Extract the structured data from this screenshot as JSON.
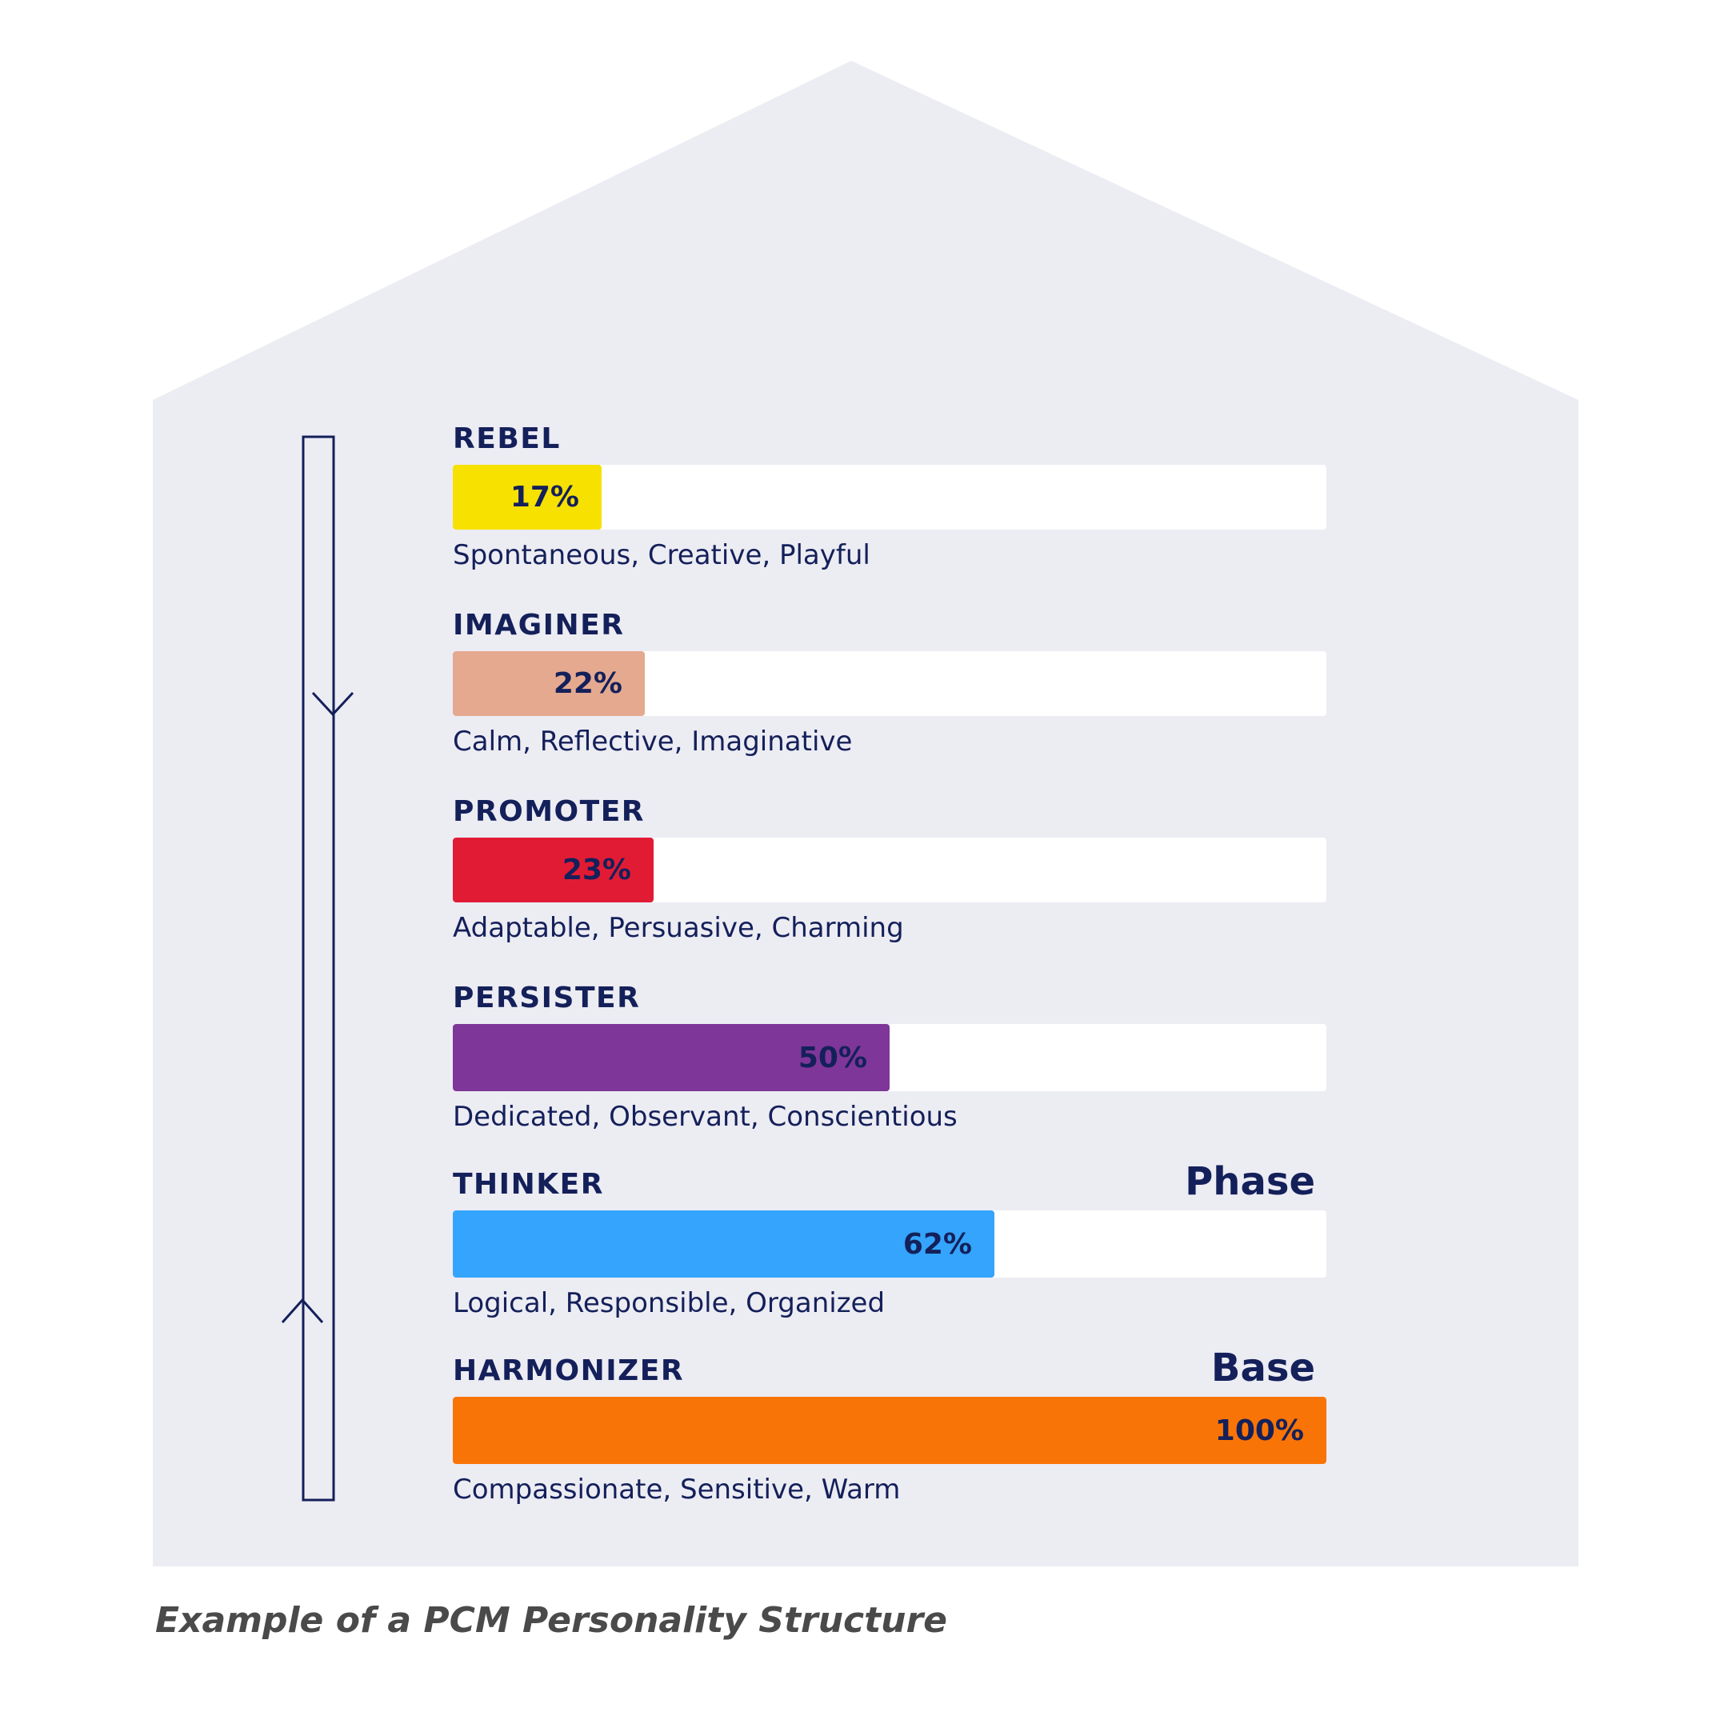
{
  "chart_data": {
    "type": "bar",
    "orientation": "horizontal",
    "title": "Example of a PCM Personality Structure",
    "xlim": [
      0,
      100
    ],
    "unit": "%",
    "categories": [
      "REBEL",
      "IMAGINER",
      "PROMOTER",
      "PERSISTER",
      "THINKER",
      "HARMONIZER"
    ],
    "values": [
      17,
      22,
      23,
      50,
      62,
      100
    ],
    "value_labels": [
      "17%",
      "22%",
      "23%",
      "50%",
      "62%",
      "100%"
    ],
    "traits": [
      "Spontaneous, Creative, Playful",
      "Calm, Reflective, Imaginative",
      "Adaptable, Persuasive, Charming",
      "Dedicated, Observant, Conscientious",
      "Logical, Responsible, Organized",
      "Compassionate, Sensitive, Warm"
    ],
    "colors": [
      "#f7e100",
      "#e4a98f",
      "#e21b34",
      "#7e3698",
      "#34a4fd",
      "#f97406"
    ],
    "annotations": [
      {
        "category": "THINKER",
        "text": "Phase"
      },
      {
        "category": "HARMONIZER",
        "text": "Base"
      }
    ]
  }
}
